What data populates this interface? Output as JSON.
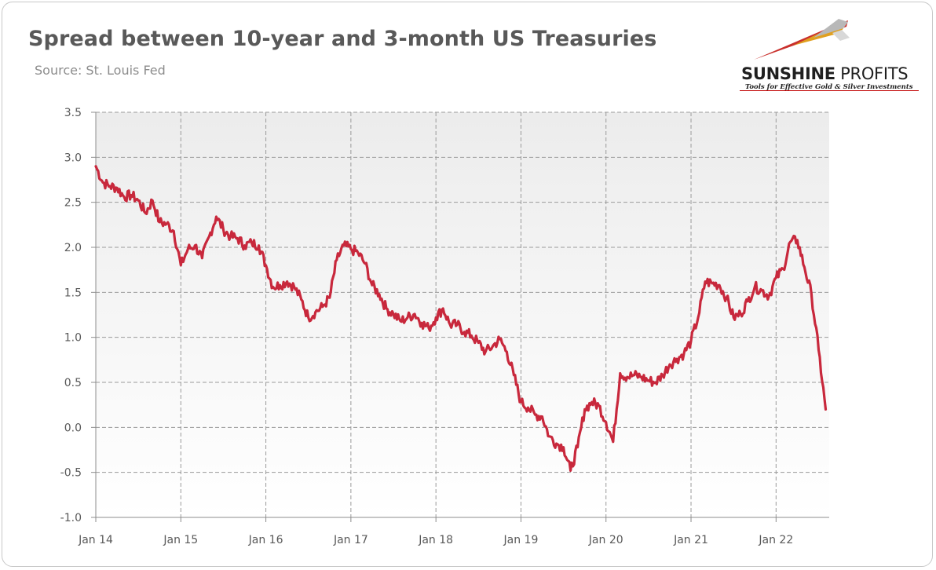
{
  "header": {
    "title": "Spread between 10-year and 3-month US Treasuries",
    "subtitle": "Source: St. Louis Fed"
  },
  "logo": {
    "name_bold": "SUNSHINE",
    "name_light": " PROFITS",
    "tagline": "Tools for Effective Gold & Silver Investments",
    "colors": [
      "#c9302c",
      "#e0a020",
      "#b0b0b0"
    ]
  },
  "chart_data": {
    "type": "line",
    "title": "Spread between 10-year and 3-month US Treasuries",
    "xlabel": "",
    "ylabel": "",
    "ylim": [
      -1.0,
      3.5
    ],
    "yticks": [
      -1.0,
      -0.5,
      0.0,
      0.5,
      1.0,
      1.5,
      2.0,
      2.5,
      3.0,
      3.5
    ],
    "ytick_labels": [
      "-1.0",
      "-0.5",
      "0.0",
      "0.5",
      "1.0",
      "1.5",
      "2.0",
      "2.5",
      "3.0",
      "3.5"
    ],
    "xlim": [
      "2014-01",
      "2022-08"
    ],
    "xtick_labels": [
      "Jan 14",
      "Jan 15",
      "Jan 16",
      "Jan 17",
      "Jan 18",
      "Jan 19",
      "Jan 20",
      "Jan 21",
      "Jan 22"
    ],
    "grid": true,
    "legend": "none",
    "line_color": "#c8283c",
    "background_gradient": [
      "#ececec",
      "#ffffff"
    ],
    "series": [
      {
        "x": [
          "2014-01",
          "2014-02",
          "2014-03",
          "2014-04",
          "2014-05",
          "2014-06",
          "2014-07",
          "2014-08",
          "2014-09",
          "2014-10",
          "2014-11",
          "2014-12",
          "2015-01",
          "2015-02",
          "2015-03",
          "2015-04",
          "2015-05",
          "2015-06",
          "2015-07",
          "2015-08",
          "2015-09",
          "2015-10",
          "2015-11",
          "2015-12",
          "2016-01",
          "2016-02",
          "2016-03",
          "2016-04",
          "2016-05",
          "2016-06",
          "2016-07",
          "2016-08",
          "2016-09",
          "2016-10",
          "2016-11",
          "2016-12",
          "2017-01",
          "2017-02",
          "2017-03",
          "2017-04",
          "2017-05",
          "2017-06",
          "2017-07",
          "2017-08",
          "2017-09",
          "2017-10",
          "2017-11",
          "2017-12",
          "2018-01",
          "2018-02",
          "2018-03",
          "2018-04",
          "2018-05",
          "2018-06",
          "2018-07",
          "2018-08",
          "2018-09",
          "2018-10",
          "2018-11",
          "2018-12",
          "2019-01",
          "2019-02",
          "2019-03",
          "2019-04",
          "2019-05",
          "2019-06",
          "2019-07",
          "2019-08",
          "2019-09",
          "2019-10",
          "2019-11",
          "2019-12",
          "2020-01",
          "2020-02",
          "2020-03",
          "2020-04",
          "2020-05",
          "2020-06",
          "2020-07",
          "2020-08",
          "2020-09",
          "2020-10",
          "2020-11",
          "2020-12",
          "2021-01",
          "2021-02",
          "2021-03",
          "2021-04",
          "2021-05",
          "2021-06",
          "2021-07",
          "2021-08",
          "2021-09",
          "2021-10",
          "2021-11",
          "2021-12",
          "2022-01",
          "2022-02",
          "2022-03",
          "2022-04",
          "2022-05",
          "2022-06",
          "2022-07",
          "2022-08"
        ],
        "values": [
          2.9,
          2.72,
          2.68,
          2.66,
          2.56,
          2.58,
          2.52,
          2.38,
          2.52,
          2.28,
          2.26,
          2.18,
          1.8,
          1.98,
          2.02,
          1.88,
          2.12,
          2.34,
          2.2,
          2.12,
          2.1,
          2.02,
          2.05,
          2.02,
          1.8,
          1.56,
          1.58,
          1.62,
          1.56,
          1.42,
          1.22,
          1.28,
          1.34,
          1.44,
          1.86,
          2.02,
          1.98,
          1.94,
          1.82,
          1.58,
          1.48,
          1.32,
          1.26,
          1.18,
          1.22,
          1.26,
          1.16,
          1.1,
          1.22,
          1.32,
          1.14,
          1.14,
          1.06,
          1.02,
          0.94,
          0.84,
          0.9,
          0.98,
          0.84,
          0.58,
          0.28,
          0.22,
          0.14,
          0.12,
          -0.1,
          -0.18,
          -0.22,
          -0.48,
          -0.22,
          0.2,
          0.28,
          0.24,
          0.06,
          -0.16,
          0.6,
          0.56,
          0.58,
          0.56,
          0.52,
          0.5,
          0.58,
          0.7,
          0.76,
          0.82,
          0.96,
          1.22,
          1.62,
          1.6,
          1.58,
          1.44,
          1.22,
          1.26,
          1.4,
          1.56,
          1.52,
          1.46,
          1.66,
          1.76,
          2.06,
          2.08,
          1.78,
          1.48,
          0.86,
          0.2
        ]
      }
    ]
  }
}
